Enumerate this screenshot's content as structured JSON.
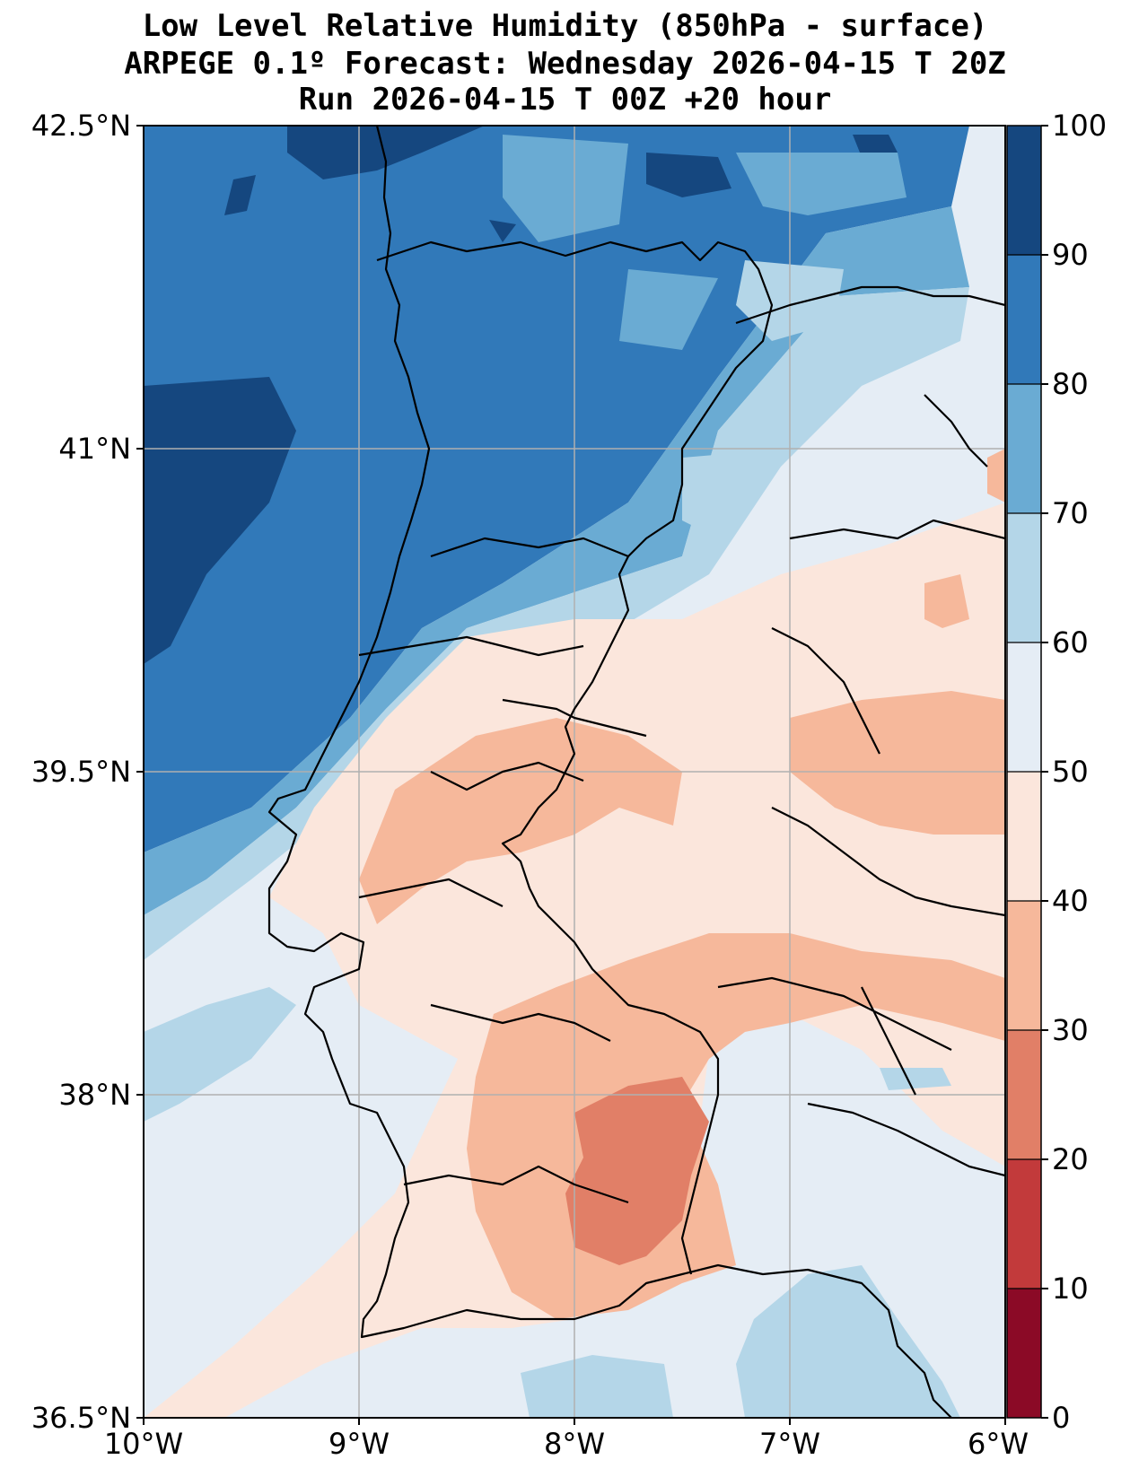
{
  "titles": {
    "line1": "Low Level Relative Humidity (850hPa - surface)",
    "line2": "ARPEGE 0.1º Forecast: Wednesday 2026-04-15 T 20Z",
    "line3": "Run 2026-04-15 T 00Z +20 hour"
  },
  "axes": {
    "lat_labels": [
      "42.5°N",
      "41°N",
      "39.5°N",
      "38°N",
      "36.5°N"
    ],
    "lon_labels": [
      "10°W",
      "9°W",
      "8°W",
      "7°W",
      "6°W"
    ],
    "lat_range": [
      36.5,
      42.5
    ],
    "lon_range": [
      -10,
      -6
    ]
  },
  "colorbar": {
    "levels": [
      0,
      10,
      20,
      30,
      40,
      50,
      60,
      70,
      80,
      90,
      100
    ],
    "tick_labels": [
      "0",
      "10",
      "20",
      "30",
      "40",
      "50",
      "60",
      "70",
      "80",
      "90",
      "100"
    ],
    "colors": [
      "#8b0a26",
      "#c23a3b",
      "#e17f67",
      "#f6b89b",
      "#fbe6dc",
      "#e5edf5",
      "#b4d6e8",
      "#6aabd3",
      "#3179b9",
      "#15477f"
    ]
  }
}
